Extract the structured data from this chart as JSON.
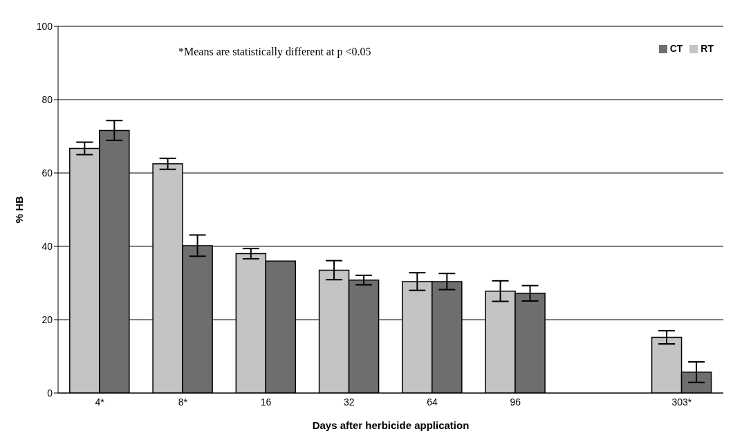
{
  "chart_data": {
    "type": "bar",
    "xlabel": "Days after herbicide application",
    "ylabel": "% HB",
    "annotations": [
      "*Means are statistically different at p <0.05"
    ],
    "categories": [
      "4*",
      "8*",
      "16",
      "32",
      "64",
      "96",
      null,
      "303*"
    ],
    "series": [
      {
        "name": "RT",
        "color": "#c4c4c4",
        "values": [
          66.7,
          62.5,
          38.0,
          33.5,
          30.4,
          27.8,
          null,
          15.2
        ],
        "errors": [
          1.7,
          1.5,
          1.4,
          2.6,
          2.4,
          2.8,
          null,
          1.8
        ]
      },
      {
        "name": "CT",
        "color": "#6e6e6e",
        "values": [
          71.6,
          40.2,
          36.0,
          30.8,
          30.4,
          27.2,
          null,
          5.7
        ],
        "errors": [
          2.7,
          2.9,
          null,
          1.3,
          2.2,
          2.1,
          null,
          2.8
        ]
      }
    ],
    "ylim": [
      0,
      100
    ],
    "yticks": [
      0,
      20,
      40,
      60,
      80,
      100
    ],
    "grid": "y",
    "legend": "top right"
  }
}
